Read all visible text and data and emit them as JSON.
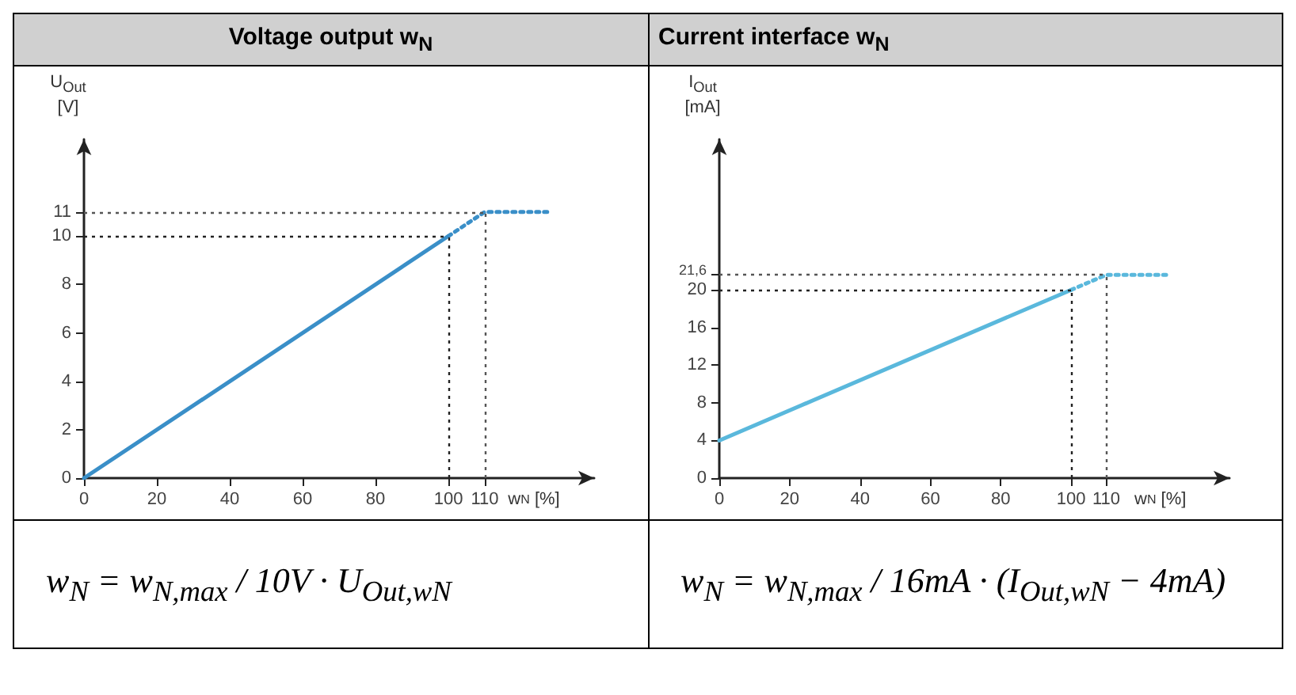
{
  "chart_data": [
    {
      "type": "line",
      "title": "Voltage output w$_{N}$",
      "ylabel": "U$_{Out}$\n[V]",
      "xlabel": "w$_{N}$ [%]",
      "xlim": [
        0,
        140
      ],
      "xticks": [
        0,
        20,
        40,
        60,
        80,
        100,
        110
      ],
      "ylim": [
        0,
        14
      ],
      "yticks": [
        0,
        2,
        4,
        6,
        8,
        10,
        11
      ],
      "grid": false,
      "marker": "none",
      "annotations": [
        "w$_{N}$ = w$_{N,max}$ / 10V · U$_{Out,wN}$"
      ],
      "series": [
        {
          "color": "#3a8fc8",
          "x": [
            0,
            100
          ],
          "values": [
            0,
            10
          ],
          "line_style": "solid"
        },
        {
          "color": "#3a8fc8",
          "x": [
            100,
            110,
            128
          ],
          "values": [
            10,
            11,
            11
          ],
          "line_style": "dotted"
        }
      ],
      "ref_lines": [
        {
          "axis": "y",
          "value": 10,
          "color": "#222222",
          "line_style": "dotted"
        },
        {
          "axis": "y",
          "value": 11,
          "color": "#555555",
          "line_style": "dotted"
        },
        {
          "axis": "x",
          "value": 100,
          "color": "#222222",
          "line_style": "dotted"
        },
        {
          "axis": "x",
          "value": 110,
          "color": "#555555",
          "line_style": "dotted"
        }
      ]
    },
    {
      "type": "line",
      "title": "Current interface w$_{N}$",
      "ylabel": "I$_{Out}$\n[mA]",
      "xlabel": "w$_{N}$ [%]",
      "xlim": [
        0,
        145
      ],
      "xticks": [
        0,
        20,
        40,
        60,
        80,
        100,
        110
      ],
      "ylim": [
        0,
        36
      ],
      "yticks": [
        0,
        4,
        8,
        12,
        16,
        20,
        {
          "value": 21.6,
          "label": "21,6"
        }
      ],
      "grid": false,
      "marker": "none",
      "annotations": [
        "w$_{N}$ = w$_{N,max}$ / 16mA · (I$_{Out,wN}$ − 4mA)"
      ],
      "series": [
        {
          "color": "#5ab8dc",
          "x": [
            0,
            100
          ],
          "values": [
            4,
            20
          ],
          "line_style": "solid"
        },
        {
          "color": "#5ab8dc",
          "x": [
            100,
            110,
            127
          ],
          "values": [
            20,
            21.6,
            21.6
          ],
          "line_style": "dotted"
        }
      ],
      "ref_lines": [
        {
          "axis": "y",
          "value": 20,
          "color": "#222222",
          "line_style": "dotted"
        },
        {
          "axis": "y",
          "value": 21.6,
          "color": "#555555",
          "line_style": "dotted"
        },
        {
          "axis": "x",
          "value": 100,
          "color": "#222222",
          "line_style": "dotted"
        },
        {
          "axis": "x",
          "value": 110,
          "color": "#555555",
          "line_style": "dotted"
        }
      ]
    }
  ]
}
